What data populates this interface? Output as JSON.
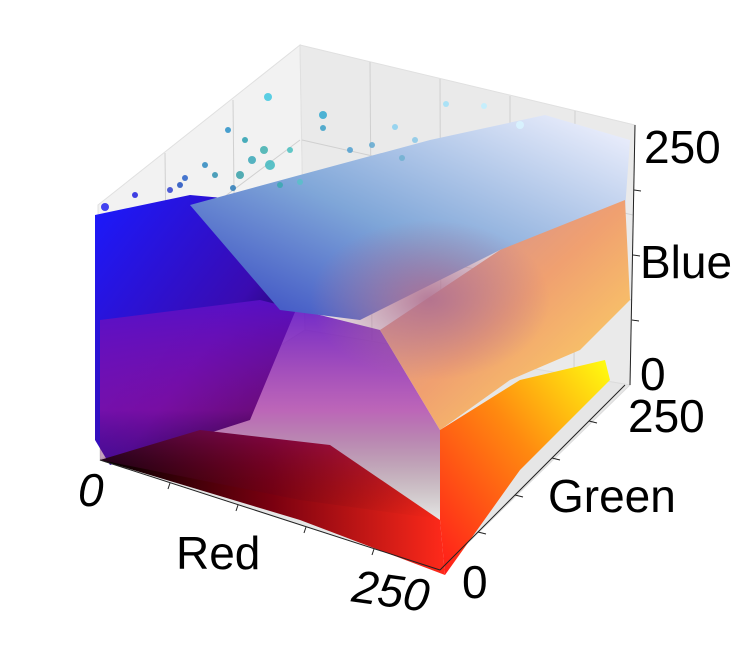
{
  "chart_data": {
    "type": "scatter",
    "projection": "3d",
    "title": "",
    "axes": {
      "x": {
        "label": "Red",
        "ticks": [
          "0",
          "250"
        ],
        "range": [
          0,
          255
        ]
      },
      "y": {
        "label": "Green",
        "ticks": [
          "0",
          "250"
        ],
        "range": [
          0,
          255
        ]
      },
      "z": {
        "label": "Blue",
        "ticks": [
          "0",
          "250"
        ],
        "range": [
          0,
          255
        ]
      }
    },
    "grid": true,
    "legend": "none",
    "point_color_mapping": "rgb(Red, Green, Blue)",
    "description_of_points": "Dense RGB color-space scatter; each point colored by its own Red/Green/Blue values filling the unit cube from black to white."
  }
}
